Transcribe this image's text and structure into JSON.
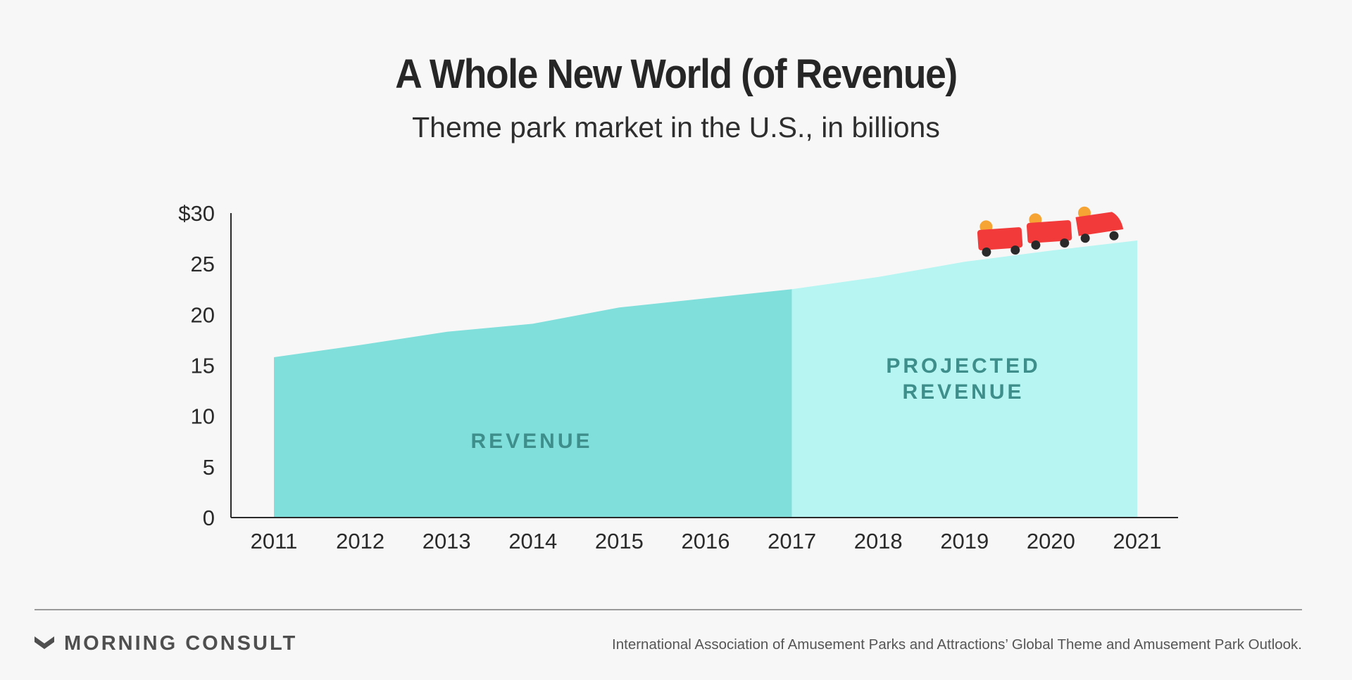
{
  "header": {
    "title": "A Whole New World (of Revenue)",
    "subtitle": "Theme park market in the U.S., in billions"
  },
  "chart_data": {
    "type": "area",
    "title": "A Whole New World (of Revenue)",
    "subtitle": "Theme park market in the U.S., in billions",
    "x": [
      "2011",
      "2012",
      "2013",
      "2014",
      "2015",
      "2016",
      "2017",
      "2018",
      "2019",
      "2020",
      "2021"
    ],
    "series": [
      {
        "name": "REVENUE",
        "x": [
          "2011",
          "2012",
          "2013",
          "2014",
          "2015",
          "2016",
          "2017"
        ],
        "values": [
          15.8,
          17.0,
          18.3,
          19.1,
          20.7,
          21.6,
          22.5
        ],
        "color": "#80dedb"
      },
      {
        "name": "PROJECTED REVENUE",
        "x": [
          "2017",
          "2018",
          "2019",
          "2020",
          "2021"
        ],
        "values": [
          22.5,
          23.7,
          25.2,
          26.3,
          27.3
        ],
        "color": "#b6f5f1"
      }
    ],
    "region_labels": [
      "REVENUE",
      "PROJECTED REVENUE"
    ],
    "y_tick_labels": [
      "$30",
      "25",
      "20",
      "15",
      "10",
      "5",
      "0"
    ],
    "y_ticks": [
      30,
      25,
      20,
      15,
      10,
      5,
      0
    ],
    "ylim": [
      0,
      30
    ],
    "xlabel": "",
    "ylabel": "",
    "grid": false,
    "legend": "none",
    "decoration": "roller-coaster-cars"
  },
  "colors": {
    "background": "#f7f7f7",
    "actual_area": "#80dedb",
    "projected_area": "#b6f5f1",
    "label_text": "#3e8e8c",
    "coaster_car": "#f23a3a",
    "coaster_rider": "#f6a535",
    "coaster_wheel": "#2a2a2a"
  },
  "footer": {
    "brand": "MORNING CONSULT",
    "brand_icon": "morning-consult-chevron-icon",
    "source": "International Association of Amusement Parks and Attractions’ Global Theme and Amusement Park Outlook."
  }
}
